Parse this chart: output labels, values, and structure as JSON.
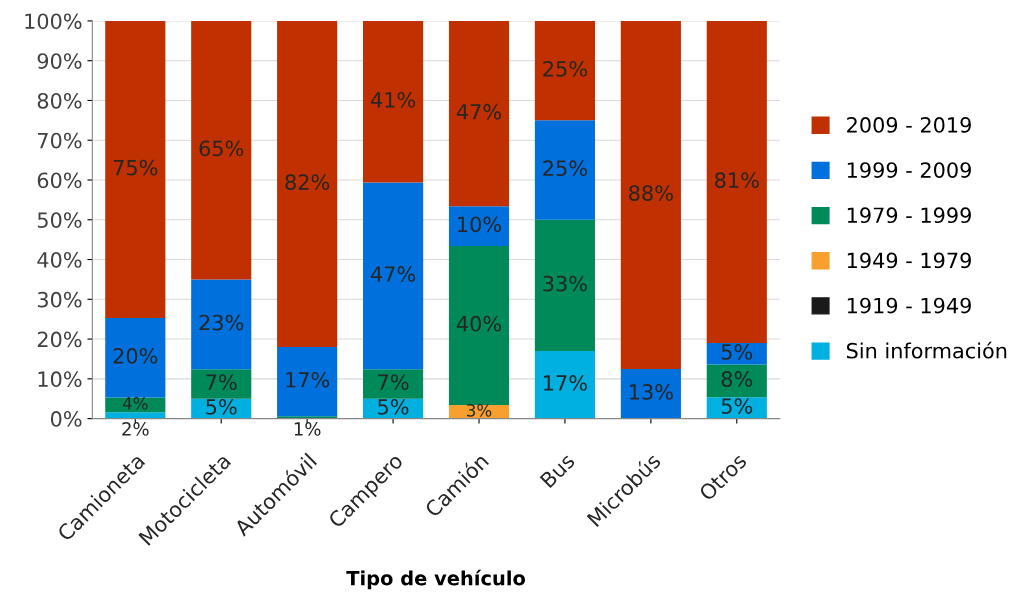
{
  "chart_data": {
    "type": "bar",
    "stacked": true,
    "xlabel": "Tipo de vehículo",
    "categories": [
      "Camioneta",
      "Motocicleta",
      "Automóvil",
      "Campero",
      "Camión",
      "Bus",
      "Microbús",
      "Otros"
    ],
    "series": [
      {
        "name": "Sin información",
        "color": "#00b0e0",
        "values": [
          1.6,
          5,
          0,
          5,
          0,
          17,
          0,
          5.4
        ],
        "value_labels": [
          "2%",
          "5%",
          null,
          "5%",
          null,
          "17%",
          null,
          "5%"
        ]
      },
      {
        "name": "1919 - 1949",
        "color": "#1a1a1a",
        "values": [
          0,
          0,
          0,
          0,
          0,
          0,
          0,
          0
        ],
        "value_labels": [
          null,
          null,
          null,
          null,
          null,
          null,
          null,
          null
        ]
      },
      {
        "name": "1949 - 1979",
        "color": "#f7a030",
        "values": [
          0,
          0,
          0,
          0,
          3.4,
          0,
          0,
          0
        ],
        "value_labels": [
          null,
          null,
          null,
          null,
          "3%",
          null,
          null,
          null
        ]
      },
      {
        "name": "1979 - 1999",
        "color": "#008a5a",
        "values": [
          3.7,
          7.4,
          0.6,
          7.4,
          40,
          33,
          0,
          8.2
        ],
        "value_labels": [
          "4%",
          "7%",
          "1%",
          "7%",
          "40%",
          "33%",
          null,
          "8%"
        ]
      },
      {
        "name": "1999 - 2009",
        "color": "#0070dd",
        "values": [
          20,
          22.6,
          17.4,
          47,
          10,
          25,
          12.5,
          5.4
        ],
        "value_labels": [
          "20%",
          "23%",
          "17%",
          "47%",
          "10%",
          "25%",
          "13%",
          "5%"
        ]
      },
      {
        "name": "2009 - 2019",
        "color": "#c03000",
        "values": [
          74.7,
          65,
          82,
          40.6,
          46.6,
          25,
          87.5,
          81
        ],
        "value_labels": [
          "75%",
          "65%",
          "82%",
          "41%",
          "47%",
          "25%",
          "88%",
          "81%"
        ]
      }
    ],
    "ylim": [
      0,
      100
    ],
    "yticks": [
      {
        "value": 0,
        "label": "0%"
      },
      {
        "value": 10,
        "label": "10%"
      },
      {
        "value": 20,
        "label": "20%"
      },
      {
        "value": 30,
        "label": "30%"
      },
      {
        "value": 40,
        "label": "40%"
      },
      {
        "value": 50,
        "label": "50%"
      },
      {
        "value": 60,
        "label": "60%"
      },
      {
        "value": 70,
        "label": "70%"
      },
      {
        "value": 80,
        "label": "80%"
      },
      {
        "value": 90,
        "label": "90%"
      },
      {
        "value": 100,
        "label": "100%"
      }
    ],
    "grid": "y",
    "legend": "right"
  }
}
